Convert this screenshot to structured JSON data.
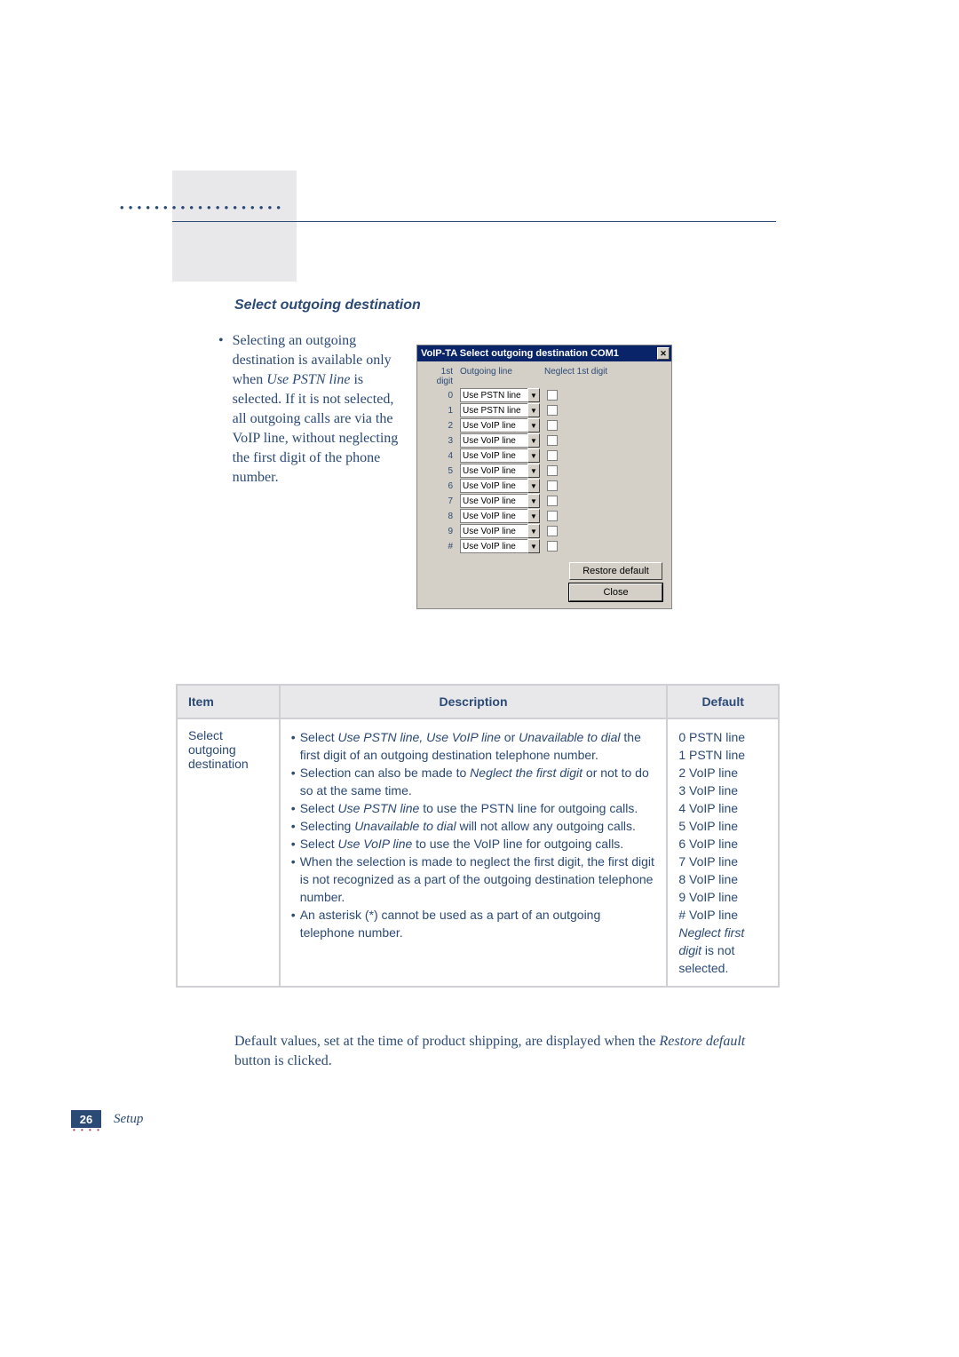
{
  "header": {
    "dots": "• • • • • • • • • • • • • • • • • • •"
  },
  "section_title": "Select outgoing destination",
  "bullet": {
    "marker": "•",
    "text_parts": {
      "p1": "Selecting an outgoing destination is available only when ",
      "em1": "Use PSTN line",
      "p2": " is selected. If it is not selected, all outgoing calls are via the VoIP line, without neglecting the first digit of the phone number."
    }
  },
  "dialog": {
    "title": "VoIP-TA Select outgoing destination COM1",
    "close_glyph": "✕",
    "headers": {
      "c1": "1st digit",
      "c2": "Outgoing line",
      "c3": "Neglect 1st digit"
    },
    "rows": [
      {
        "digit": "0",
        "line": "Use PSTN line"
      },
      {
        "digit": "1",
        "line": "Use PSTN line"
      },
      {
        "digit": "2",
        "line": "Use VoIP line"
      },
      {
        "digit": "3",
        "line": "Use VoIP line"
      },
      {
        "digit": "4",
        "line": "Use VoIP line"
      },
      {
        "digit": "5",
        "line": "Use VoIP line"
      },
      {
        "digit": "6",
        "line": "Use VoIP line"
      },
      {
        "digit": "7",
        "line": "Use VoIP line"
      },
      {
        "digit": "8",
        "line": "Use VoIP line"
      },
      {
        "digit": "9",
        "line": "Use VoIP line"
      },
      {
        "digit": "#",
        "line": "Use VoIP line"
      }
    ],
    "dropdown_glyph": "▼",
    "restore_label": "Restore default",
    "close_label": "Close"
  },
  "table": {
    "headers": {
      "item": "Item",
      "description": "Description",
      "default": "Default"
    },
    "item_label": "Select outgoing destination",
    "desc_items": [
      {
        "pre": "Select ",
        "em": "Use PSTN line, Use VoIP line",
        "mid": " or ",
        "em2": "Unavailable to dial",
        "post": " the first digit of an outgoing destination telephone number."
      },
      {
        "pre": "Selection can also be made to ",
        "em": "Neglect the first digit",
        "post": " or not to do so at the same time."
      },
      {
        "pre": "Select ",
        "em": "Use PSTN line",
        "post": " to use the PSTN line for outgoing calls."
      },
      {
        "pre": "Selecting ",
        "em": "Unavailable to dial",
        "post": " will not allow any outgoing calls."
      },
      {
        "pre": "Select ",
        "em": "Use VoIP line",
        "post": " to use the VoIP line for outgoing calls."
      },
      {
        "pre": "",
        "em": "",
        "post": "When the selection is made to neglect the first digit, the first digit is not recognized as a part of the outgoing destination telephone number."
      },
      {
        "pre": "",
        "em": "",
        "post": "An asterisk (*) cannot be used as a part of an outgoing telephone number."
      }
    ],
    "defaults": [
      "0  PSTN line",
      "1  PSTN line",
      "2  VoIP line",
      "3  VoIP line",
      "4  VoIP line",
      "5  VoIP line",
      "6  VoIP line",
      "7  VoIP line",
      "8  VoIP line",
      "9  VoIP line",
      "#  VoIP line"
    ],
    "default_note_em": "Neglect first digit",
    "default_note_rest": " is not selected."
  },
  "post_text": {
    "p1": "Default values, set at the time of product shipping, are displayed when the ",
    "em": "Restore default",
    "p2": " button is clicked."
  },
  "footer": {
    "page": "26",
    "dots": "• • • •",
    "label": "Setup"
  }
}
